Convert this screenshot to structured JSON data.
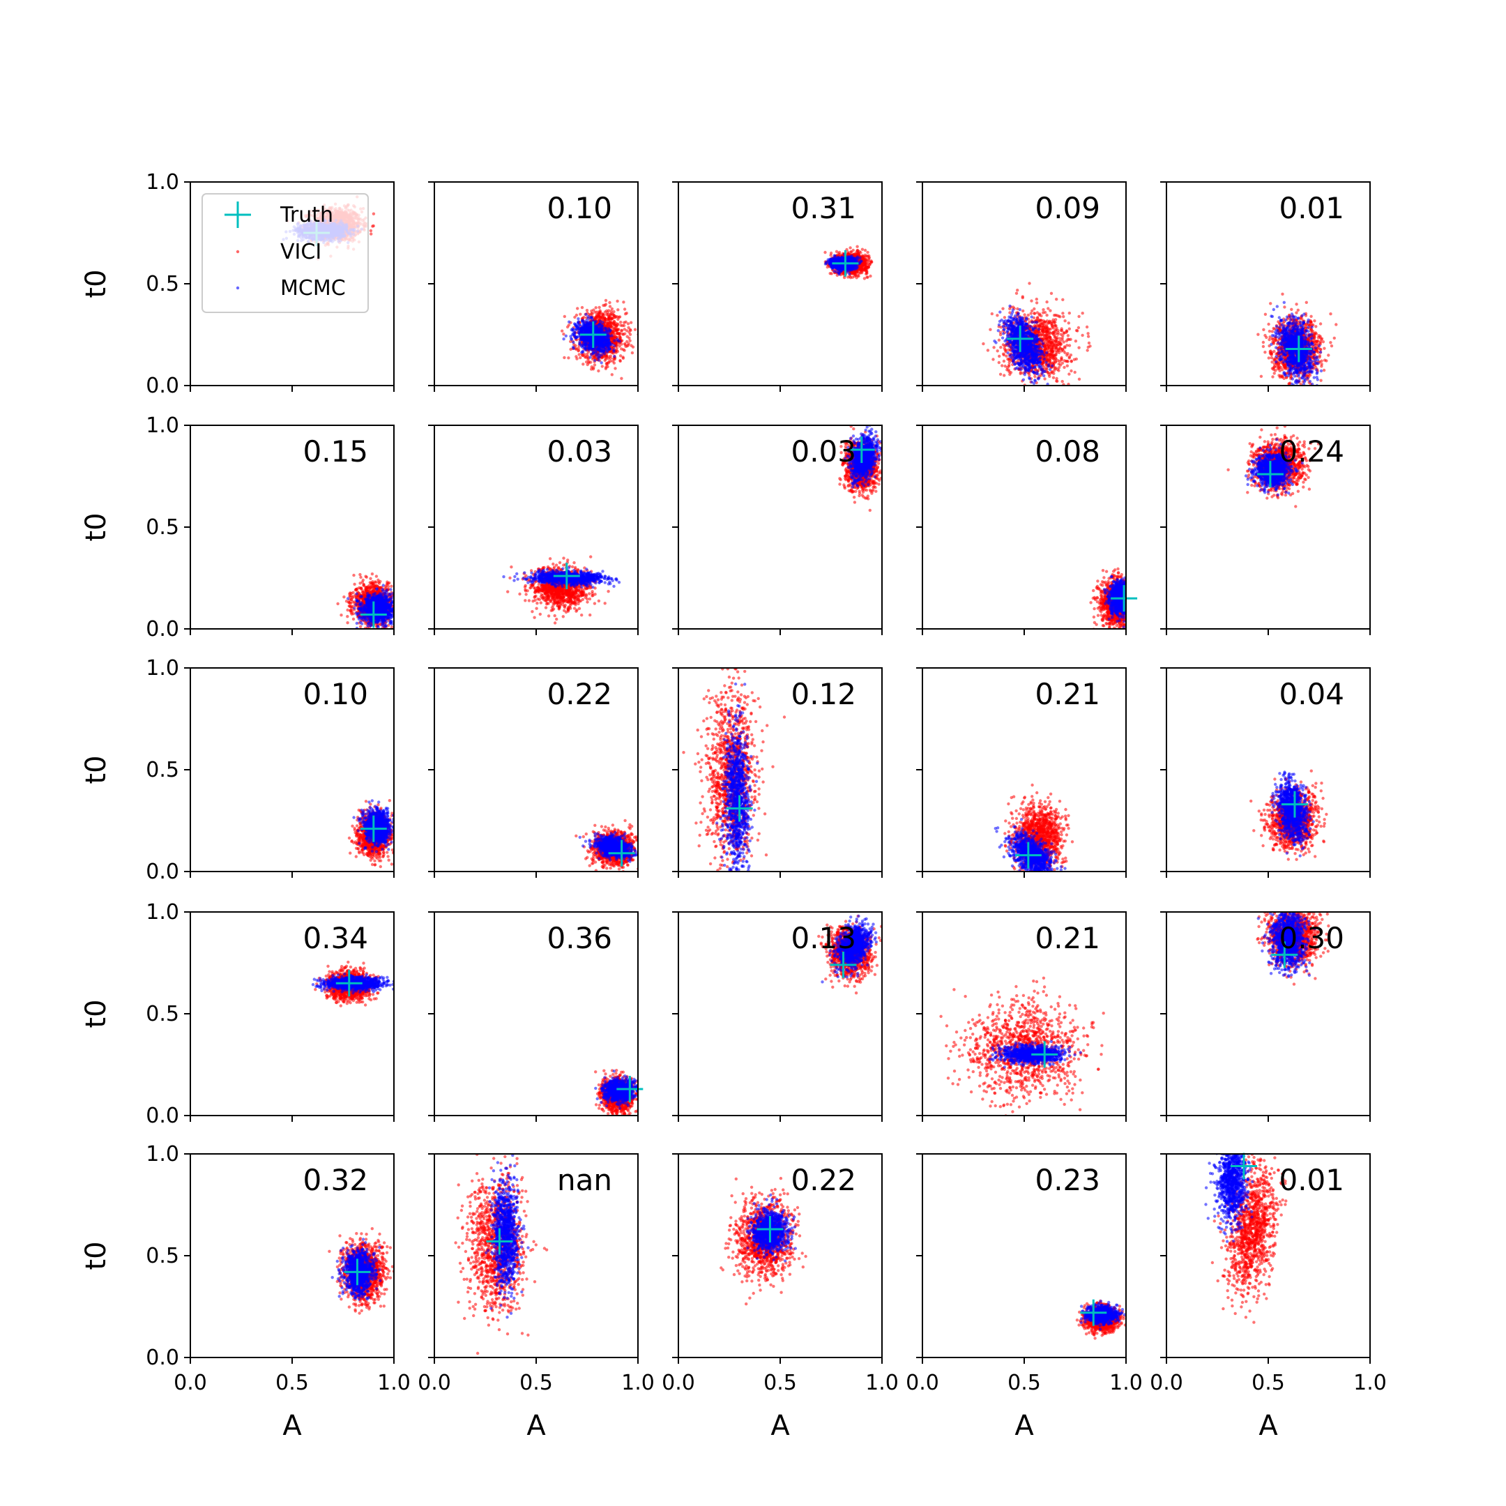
{
  "chart_data": {
    "type": "scatter",
    "grid": "5x5 subplots",
    "xlabel": "A",
    "ylabel": "t0",
    "xlim": [
      0,
      1
    ],
    "ylim": [
      0,
      1
    ],
    "xticks": [
      "0.0",
      "0.5",
      "1.0"
    ],
    "yticks": [
      "0.0",
      "0.5",
      "1.0"
    ],
    "legend": {
      "placement": "top-left of first panel",
      "entries": [
        {
          "label": "Truth",
          "marker": "plus",
          "color": "#00bfbf"
        },
        {
          "label": "VICI",
          "marker": "dot",
          "color": "#ff0000"
        },
        {
          "label": "MCMC",
          "marker": "dot",
          "color": "#0000ff"
        }
      ]
    },
    "colors": {
      "vici": "#ff0000",
      "mcmc": "#0000ff",
      "truth": "#00bfbf"
    },
    "panels": [
      {
        "label": "",
        "truth": [
          0.62,
          0.75
        ],
        "vici": {
          "cx": 0.72,
          "cy": 0.79,
          "sx": 0.06,
          "sy": 0.04,
          "rho": 0
        },
        "mcmc": {
          "cx": 0.65,
          "cy": 0.76,
          "sx": 0.06,
          "sy": 0.02,
          "rho": 0
        }
      },
      {
        "label": "0.10",
        "truth": [
          0.78,
          0.25
        ],
        "vici": {
          "cx": 0.82,
          "cy": 0.24,
          "sx": 0.06,
          "sy": 0.06,
          "rho": 0
        },
        "mcmc": {
          "cx": 0.78,
          "cy": 0.24,
          "sx": 0.04,
          "sy": 0.035,
          "rho": -0.3
        }
      },
      {
        "label": "0.31",
        "truth": [
          0.82,
          0.6
        ],
        "vici": {
          "cx": 0.85,
          "cy": 0.6,
          "sx": 0.04,
          "sy": 0.025,
          "rho": 0
        },
        "mcmc": {
          "cx": 0.81,
          "cy": 0.6,
          "sx": 0.03,
          "sy": 0.015,
          "rho": 0
        }
      },
      {
        "label": "0.09",
        "truth": [
          0.48,
          0.23
        ],
        "vici": {
          "cx": 0.56,
          "cy": 0.2,
          "sx": 0.08,
          "sy": 0.08,
          "rho": 0
        },
        "mcmc": {
          "cx": 0.5,
          "cy": 0.2,
          "sx": 0.045,
          "sy": 0.07,
          "rho": -0.5
        }
      },
      {
        "label": "0.01",
        "truth": [
          0.65,
          0.18
        ],
        "vici": {
          "cx": 0.64,
          "cy": 0.18,
          "sx": 0.06,
          "sy": 0.07,
          "rho": 0
        },
        "mcmc": {
          "cx": 0.64,
          "cy": 0.18,
          "sx": 0.04,
          "sy": 0.07,
          "rho": -0.3
        }
      },
      {
        "label": "0.15",
        "truth": [
          0.9,
          0.07
        ],
        "vici": {
          "cx": 0.9,
          "cy": 0.12,
          "sx": 0.05,
          "sy": 0.05,
          "rho": 0
        },
        "mcmc": {
          "cx": 0.92,
          "cy": 0.1,
          "sx": 0.04,
          "sy": 0.035,
          "rho": 0
        }
      },
      {
        "label": "0.03",
        "truth": [
          0.65,
          0.26
        ],
        "vici": {
          "cx": 0.62,
          "cy": 0.2,
          "sx": 0.07,
          "sy": 0.05,
          "rho": 0
        },
        "mcmc": {
          "cx": 0.66,
          "cy": 0.25,
          "sx": 0.09,
          "sy": 0.015,
          "rho": 0
        }
      },
      {
        "label": "0.03",
        "truth": [
          0.9,
          0.88
        ],
        "vici": {
          "cx": 0.9,
          "cy": 0.8,
          "sx": 0.04,
          "sy": 0.06,
          "rho": 0
        },
        "mcmc": {
          "cx": 0.91,
          "cy": 0.84,
          "sx": 0.03,
          "sy": 0.05,
          "rho": 0.3
        }
      },
      {
        "label": "0.08",
        "truth": [
          0.99,
          0.15
        ],
        "vici": {
          "cx": 0.95,
          "cy": 0.13,
          "sx": 0.04,
          "sy": 0.06,
          "rho": 0
        },
        "mcmc": {
          "cx": 0.97,
          "cy": 0.15,
          "sx": 0.025,
          "sy": 0.04,
          "rho": 0
        }
      },
      {
        "label": "0.24",
        "truth": [
          0.51,
          0.76
        ],
        "vici": {
          "cx": 0.55,
          "cy": 0.8,
          "sx": 0.06,
          "sy": 0.06,
          "rho": 0
        },
        "mcmc": {
          "cx": 0.52,
          "cy": 0.78,
          "sx": 0.04,
          "sy": 0.04,
          "rho": 0
        }
      },
      {
        "label": "0.10",
        "truth": [
          0.9,
          0.21
        ],
        "vici": {
          "cx": 0.9,
          "cy": 0.18,
          "sx": 0.04,
          "sy": 0.05,
          "rho": 0
        },
        "mcmc": {
          "cx": 0.92,
          "cy": 0.22,
          "sx": 0.03,
          "sy": 0.04,
          "rho": 0
        }
      },
      {
        "label": "0.22",
        "truth": [
          0.92,
          0.09
        ],
        "vici": {
          "cx": 0.88,
          "cy": 0.11,
          "sx": 0.05,
          "sy": 0.04,
          "rho": 0
        },
        "mcmc": {
          "cx": 0.88,
          "cy": 0.12,
          "sx": 0.04,
          "sy": 0.025,
          "rho": -0.3
        }
      },
      {
        "label": "0.12",
        "truth": [
          0.3,
          0.31
        ],
        "vici": {
          "cx": 0.26,
          "cy": 0.45,
          "sx": 0.06,
          "sy": 0.2,
          "rho": 0
        },
        "mcmc": {
          "cx": 0.29,
          "cy": 0.35,
          "sx": 0.03,
          "sy": 0.18,
          "rho": 0
        }
      },
      {
        "label": "0.21",
        "truth": [
          0.52,
          0.08
        ],
        "vici": {
          "cx": 0.57,
          "cy": 0.17,
          "sx": 0.06,
          "sy": 0.08,
          "rho": 0
        },
        "mcmc": {
          "cx": 0.54,
          "cy": 0.08,
          "sx": 0.05,
          "sy": 0.05,
          "rho": -0.5
        }
      },
      {
        "label": "0.04",
        "truth": [
          0.63,
          0.33
        ],
        "vici": {
          "cx": 0.62,
          "cy": 0.25,
          "sx": 0.06,
          "sy": 0.07,
          "rho": 0
        },
        "mcmc": {
          "cx": 0.62,
          "cy": 0.3,
          "sx": 0.035,
          "sy": 0.07,
          "rho": -0.3
        }
      },
      {
        "label": "0.34",
        "truth": [
          0.78,
          0.65
        ],
        "vici": {
          "cx": 0.78,
          "cy": 0.64,
          "sx": 0.05,
          "sy": 0.035,
          "rho": 0
        },
        "mcmc": {
          "cx": 0.8,
          "cy": 0.65,
          "sx": 0.07,
          "sy": 0.015,
          "rho": 0
        }
      },
      {
        "label": "0.36",
        "truth": [
          0.96,
          0.13
        ],
        "vici": {
          "cx": 0.9,
          "cy": 0.1,
          "sx": 0.04,
          "sy": 0.04,
          "rho": 0
        },
        "mcmc": {
          "cx": 0.91,
          "cy": 0.12,
          "sx": 0.035,
          "sy": 0.025,
          "rho": 0
        }
      },
      {
        "label": "0.13",
        "truth": [
          0.81,
          0.74
        ],
        "vici": {
          "cx": 0.84,
          "cy": 0.8,
          "sx": 0.05,
          "sy": 0.06,
          "rho": 0
        },
        "mcmc": {
          "cx": 0.86,
          "cy": 0.83,
          "sx": 0.04,
          "sy": 0.05,
          "rho": 0.3
        }
      },
      {
        "label": "0.21",
        "truth": [
          0.6,
          0.3
        ],
        "vici": {
          "cx": 0.5,
          "cy": 0.32,
          "sx": 0.14,
          "sy": 0.12,
          "rho": 0
        },
        "mcmc": {
          "cx": 0.54,
          "cy": 0.3,
          "sx": 0.07,
          "sy": 0.02,
          "rho": 0
        }
      },
      {
        "label": "0.30",
        "truth": [
          0.58,
          0.79
        ],
        "vici": {
          "cx": 0.62,
          "cy": 0.88,
          "sx": 0.06,
          "sy": 0.07,
          "rho": 0
        },
        "mcmc": {
          "cx": 0.6,
          "cy": 0.86,
          "sx": 0.04,
          "sy": 0.07,
          "rho": 0
        }
      },
      {
        "label": "0.32",
        "truth": [
          0.82,
          0.42
        ],
        "vici": {
          "cx": 0.85,
          "cy": 0.42,
          "sx": 0.05,
          "sy": 0.07,
          "rho": 0
        },
        "mcmc": {
          "cx": 0.83,
          "cy": 0.42,
          "sx": 0.035,
          "sy": 0.05,
          "rho": 0
        }
      },
      {
        "label": "nan",
        "truth": [
          0.32,
          0.57
        ],
        "vici": {
          "cx": 0.3,
          "cy": 0.55,
          "sx": 0.07,
          "sy": 0.16,
          "rho": 0
        },
        "mcmc": {
          "cx": 0.35,
          "cy": 0.6,
          "sx": 0.03,
          "sy": 0.13,
          "rho": 0
        }
      },
      {
        "label": "0.22",
        "truth": [
          0.45,
          0.63
        ],
        "vici": {
          "cx": 0.42,
          "cy": 0.58,
          "sx": 0.07,
          "sy": 0.09,
          "rho": 0
        },
        "mcmc": {
          "cx": 0.45,
          "cy": 0.62,
          "sx": 0.04,
          "sy": 0.05,
          "rho": 0
        }
      },
      {
        "label": "0.23",
        "truth": [
          0.84,
          0.22
        ],
        "vici": {
          "cx": 0.88,
          "cy": 0.19,
          "sx": 0.04,
          "sy": 0.03,
          "rho": 0
        },
        "mcmc": {
          "cx": 0.88,
          "cy": 0.21,
          "sx": 0.035,
          "sy": 0.02,
          "rho": 0
        }
      },
      {
        "label": "0.01",
        "truth": [
          0.38,
          0.94
        ],
        "vici": {
          "cx": 0.42,
          "cy": 0.63,
          "sx": 0.06,
          "sy": 0.15,
          "rho": 0.3
        },
        "mcmc": {
          "cx": 0.32,
          "cy": 0.87,
          "sx": 0.035,
          "sy": 0.1,
          "rho": 0
        }
      }
    ]
  }
}
